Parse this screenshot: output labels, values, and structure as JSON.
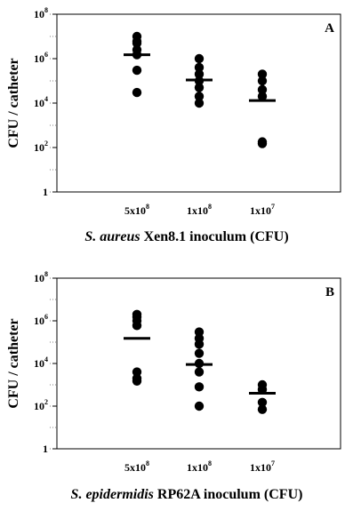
{
  "chart_data": [
    {
      "type": "scatter",
      "panel_label": "A",
      "ylabel": "CFU / catheter",
      "xlabel_italic": "S. aureus",
      "xlabel_rest": " Xen8.1 inoculum (CFU)",
      "yscale": "log",
      "ylim": [
        1,
        100000000
      ],
      "yticks": [
        {
          "value": 1,
          "base": "1",
          "exp": ""
        },
        {
          "value": 100,
          "base": "10",
          "exp": "2"
        },
        {
          "value": 10000,
          "base": "10",
          "exp": "4"
        },
        {
          "value": 1000000,
          "base": "10",
          "exp": "6"
        },
        {
          "value": 100000000,
          "base": "10",
          "exp": "8"
        }
      ],
      "categories": [
        {
          "base": "5x10",
          "exp": "8"
        },
        {
          "base": "1x10",
          "exp": "8"
        },
        {
          "base": "1x10",
          "exp": "7"
        }
      ],
      "points": [
        [
          10000000,
          6000000,
          5000000,
          2500000,
          1500000,
          300000,
          30000
        ],
        [
          1000000,
          400000,
          200000,
          100000,
          50000,
          20000,
          10000
        ],
        [
          200000,
          100000,
          40000,
          20000,
          180,
          150
        ]
      ],
      "means": [
        1500000,
        110000,
        13000
      ]
    },
    {
      "type": "scatter",
      "panel_label": "B",
      "ylabel": "CFU / catheter",
      "xlabel_italic": "S. epidermidis",
      "xlabel_rest": " RP62A inoculum (CFU)",
      "yscale": "log",
      "ylim": [
        1,
        100000000
      ],
      "yticks": [
        {
          "value": 1,
          "base": "1",
          "exp": ""
        },
        {
          "value": 100,
          "base": "10",
          "exp": "2"
        },
        {
          "value": 10000,
          "base": "10",
          "exp": "4"
        },
        {
          "value": 1000000,
          "base": "10",
          "exp": "6"
        },
        {
          "value": 100000000,
          "base": "10",
          "exp": "8"
        }
      ],
      "categories": [
        {
          "base": "5x10",
          "exp": "8"
        },
        {
          "base": "1x10",
          "exp": "8"
        },
        {
          "base": "1x10",
          "exp": "7"
        }
      ],
      "points": [
        [
          2000000,
          1500000,
          1000000,
          600000,
          4000,
          2000,
          1500
        ],
        [
          300000,
          150000,
          80000,
          30000,
          10000,
          4000,
          800,
          100
        ],
        [
          1000,
          600,
          150,
          70
        ]
      ],
      "means": [
        150000,
        9000,
        400
      ]
    }
  ]
}
